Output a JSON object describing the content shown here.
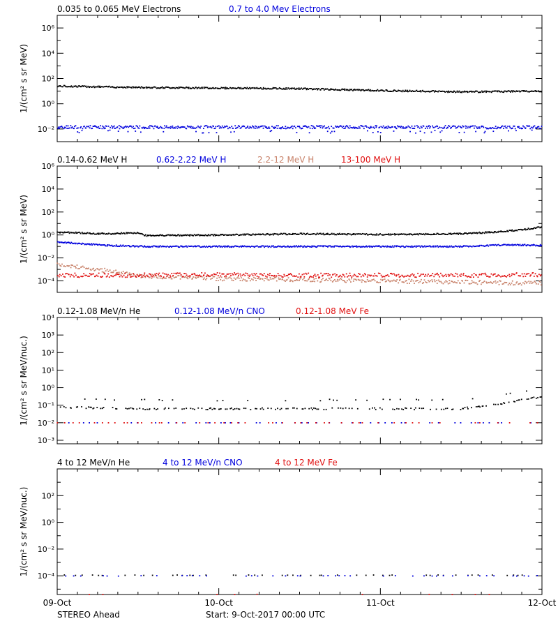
{
  "figure": {
    "spacecraft": "STEREO Ahead",
    "start_label": "Start:  9-Oct-2017 00:00 UTC",
    "x_ticks": [
      "09-Oct",
      "10-Oct",
      "11-Oct",
      "12-Oct"
    ],
    "colors": {
      "axis": "#000000",
      "black": "#000000",
      "blue": "#0000dd",
      "tan": "#c8826a",
      "red": "#e01010"
    }
  },
  "chart_data": [
    {
      "type": "scatter",
      "ylabel": "1/(cm² s sr MeV)",
      "y_scale": "log",
      "ylim_exp": [
        -3,
        7
      ],
      "y_tick_exps": [
        -2,
        0,
        2,
        4,
        6
      ],
      "y_tick_labels": [
        "10⁻²",
        "10⁰",
        "10²",
        "10⁴",
        "10⁶"
      ],
      "xlim_days": [
        0,
        3
      ],
      "series": [
        {
          "name": "0.035 to 0.065 MeV Electrons",
          "color": "#000000",
          "x": [
            0,
            0.5,
            1,
            1.5,
            2,
            2.5,
            3
          ],
          "log10_y": [
            1.4,
            1.3,
            1.25,
            1.2,
            1.05,
            0.95,
            1.0
          ]
        },
        {
          "name": "0.7 to 4.0 Mev Electrons",
          "color": "#0000dd",
          "x": [
            0,
            0.5,
            1,
            1.5,
            2,
            2.5,
            3
          ],
          "log10_y": [
            -1.85,
            -1.85,
            -1.85,
            -1.85,
            -1.85,
            -1.85,
            -1.85
          ]
        }
      ]
    },
    {
      "type": "scatter",
      "ylabel": "1/(cm² s sr MeV)",
      "y_scale": "log",
      "ylim_exp": [
        -5,
        6
      ],
      "y_tick_exps": [
        -4,
        -2,
        0,
        2,
        4,
        6
      ],
      "y_tick_labels": [
        "10⁻⁴",
        "10⁻²",
        "10⁰",
        "10²",
        "10⁴",
        "10⁶"
      ],
      "xlim_days": [
        0,
        3
      ],
      "series": [
        {
          "name": "0.14-0.62 MeV H",
          "color": "#000000",
          "x": [
            0,
            0.3,
            0.5,
            0.55,
            1,
            1.5,
            2,
            2.5,
            2.75,
            2.9,
            3
          ],
          "log10_y": [
            0.25,
            0.1,
            0.2,
            -0.05,
            0.0,
            0.1,
            0.05,
            0.1,
            0.3,
            0.5,
            0.7
          ]
        },
        {
          "name": "0.62-2.22 MeV H",
          "color": "#0000dd",
          "x": [
            0,
            0.3,
            0.55,
            1,
            1.5,
            2,
            2.5,
            2.8,
            3
          ],
          "log10_y": [
            -0.6,
            -0.9,
            -1.0,
            -1.0,
            -1.0,
            -1.0,
            -1.0,
            -0.85,
            -0.9
          ]
        },
        {
          "name": "2.2-12 MeV H",
          "color": "#c8826a",
          "x": [
            0,
            0.15,
            0.3,
            0.45,
            0.55,
            1,
            2,
            2.5,
            3
          ],
          "log10_y": [
            -2.6,
            -2.8,
            -3.1,
            -3.4,
            -3.6,
            -3.8,
            -4.0,
            -4.1,
            -4.2
          ]
        },
        {
          "name": "13-100 MeV H",
          "color": "#e01010",
          "x": [
            0,
            0.5,
            1,
            1.5,
            2,
            2.5,
            3
          ],
          "log10_y": [
            -3.5,
            -3.5,
            -3.45,
            -3.5,
            -3.5,
            -3.5,
            -3.45
          ]
        }
      ]
    },
    {
      "type": "scatter",
      "ylabel": "1/(cm² s sr MeV/nuc.)",
      "y_scale": "log",
      "ylim_exp": [
        -3.2,
        4
      ],
      "y_tick_exps": [
        -3,
        -2,
        -1,
        0,
        1,
        2,
        3,
        4
      ],
      "y_tick_labels": [
        "10⁻³",
        "10⁻²",
        "10⁻¹",
        "10⁰",
        "10¹",
        "10²",
        "10³",
        "10⁴"
      ],
      "xlim_days": [
        0,
        3
      ],
      "series": [
        {
          "name": "0.12-1.08 MeV/n He",
          "color": "#000000",
          "x": [
            0,
            0.5,
            1,
            1.5,
            2,
            2.5,
            2.75,
            3
          ],
          "log10_y": [
            -1.1,
            -1.2,
            -1.2,
            -1.2,
            -1.2,
            -1.2,
            -0.9,
            -0.5
          ]
        },
        {
          "name": "0.12-1.08 MeV/n CNO",
          "color": "#0000dd",
          "x": [
            0,
            1,
            2,
            3
          ],
          "log10_y": [
            -2.0,
            -2.0,
            -2.0,
            -2.0
          ]
        },
        {
          "name": "0.12-1.08 MeV Fe",
          "color": "#e01010",
          "x": [
            0,
            1,
            2,
            3
          ],
          "log10_y": [
            -2.0,
            -2.0,
            -2.0,
            -2.0
          ]
        }
      ]
    },
    {
      "type": "scatter",
      "ylabel": "1/(cm² s sr MeV/nuc.)",
      "y_scale": "log",
      "ylim_exp": [
        -5.4,
        4
      ],
      "y_tick_exps": [
        -4,
        -2,
        0,
        2
      ],
      "y_tick_labels": [
        "10⁻⁴",
        "10⁻²",
        "10⁰",
        "10²"
      ],
      "xlim_days": [
        0,
        3
      ],
      "series": [
        {
          "name": "4 to 12 MeV/n He",
          "color": "#000000",
          "x": [
            0,
            1,
            2,
            3
          ],
          "log10_y": [
            -3.95,
            -3.95,
            -3.95,
            -3.95
          ]
        },
        {
          "name": "4 to 12 MeV/n CNO",
          "color": "#0000dd",
          "x": [
            0,
            1,
            2,
            3
          ],
          "log10_y": [
            -4.0,
            -4.0,
            -4.0,
            -4.0
          ]
        },
        {
          "name": "4 to 12 MeV Fe",
          "color": "#e01010",
          "x": [
            0,
            1,
            2,
            3
          ],
          "log10_y": [
            -5.4,
            -5.4,
            -5.4,
            -5.4
          ]
        }
      ]
    }
  ]
}
